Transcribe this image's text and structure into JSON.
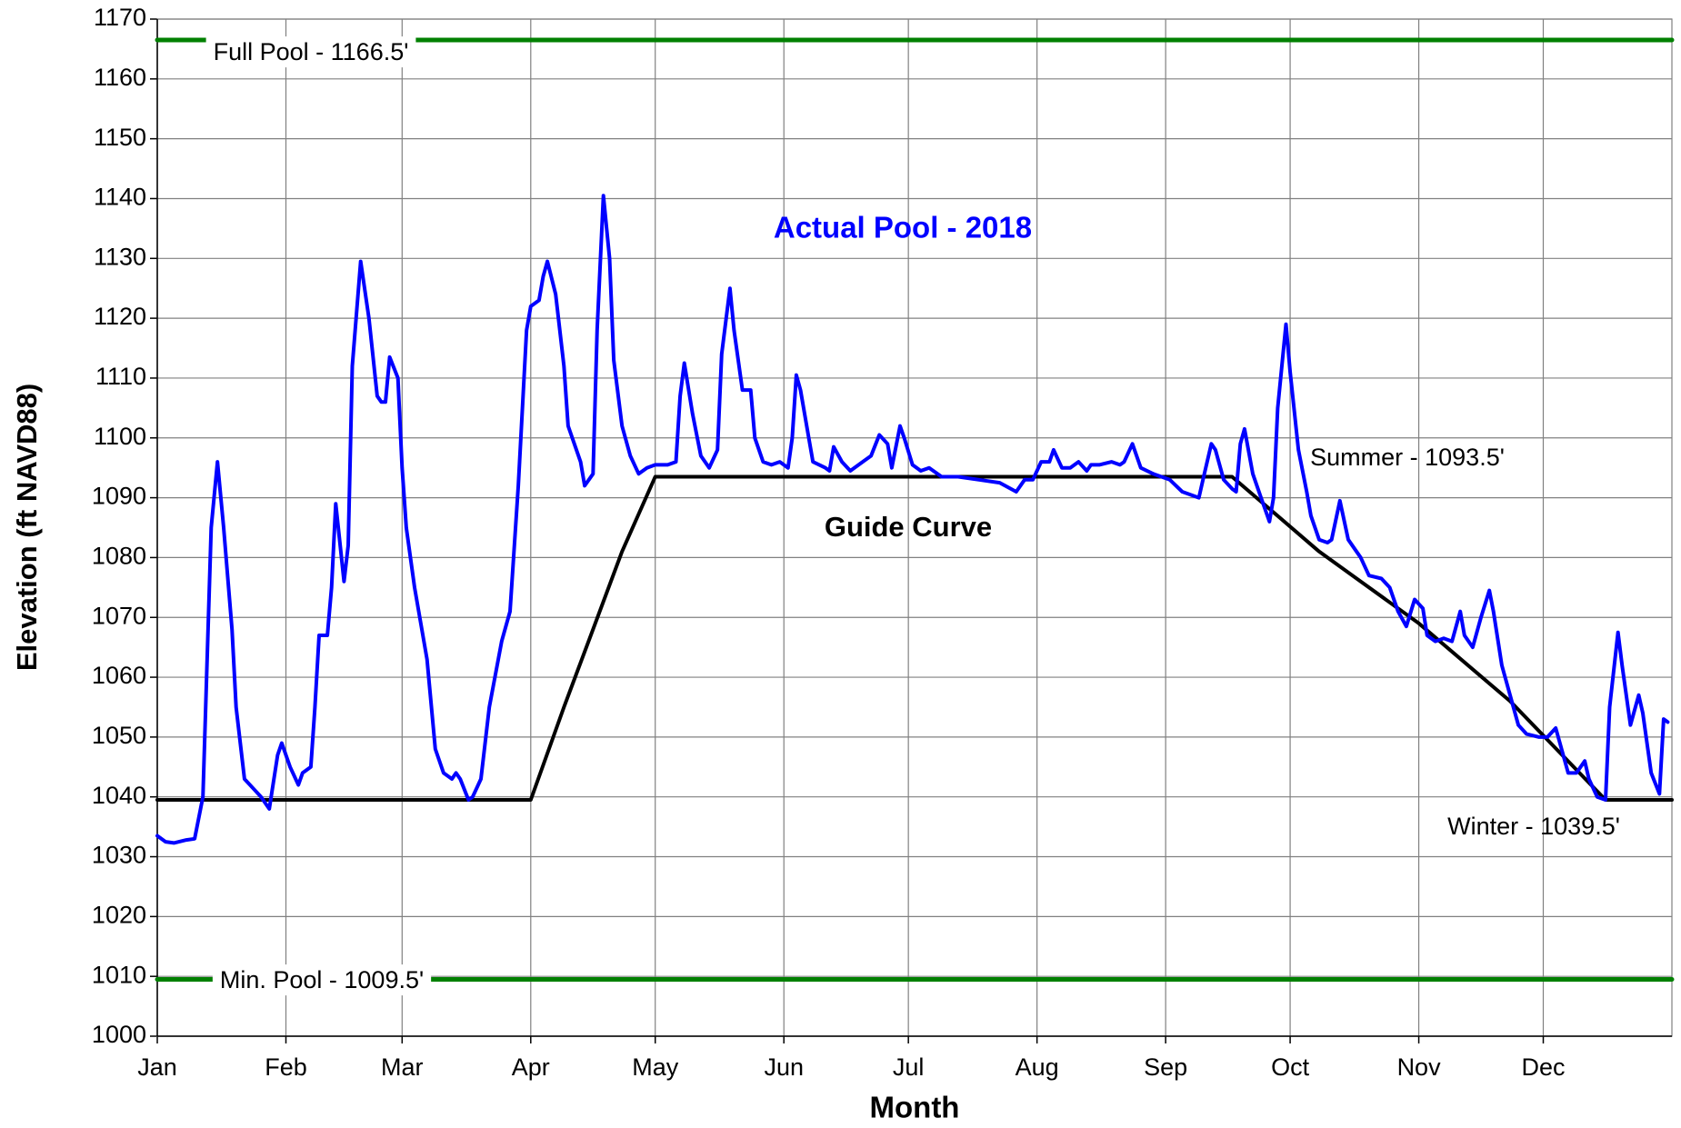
{
  "chart_data": {
    "type": "line",
    "x_label": "Month",
    "y_label": "Elevation (ft NAVD88)",
    "xlim": [
      0,
      365
    ],
    "ylim": [
      1000,
      1170
    ],
    "xticks": [
      {
        "value": 0,
        "label": "Jan"
      },
      {
        "value": 31,
        "label": "Feb"
      },
      {
        "value": 59,
        "label": "Mar"
      },
      {
        "value": 90,
        "label": "Apr"
      },
      {
        "value": 120,
        "label": "May"
      },
      {
        "value": 151,
        "label": "Jun"
      },
      {
        "value": 181,
        "label": "Jul"
      },
      {
        "value": 212,
        "label": "Aug"
      },
      {
        "value": 243,
        "label": "Sep"
      },
      {
        "value": 273,
        "label": "Oct"
      },
      {
        "value": 304,
        "label": "Nov"
      },
      {
        "value": 334,
        "label": "Dec"
      }
    ],
    "yticks": [
      1000,
      1010,
      1020,
      1030,
      1040,
      1050,
      1060,
      1070,
      1080,
      1090,
      1100,
      1110,
      1120,
      1130,
      1140,
      1150,
      1160,
      1170
    ],
    "grid": true,
    "series": [
      {
        "name": "Actual Pool - 2018",
        "color": "#0000ff",
        "x": [
          0,
          2,
          4,
          7,
          9,
          11,
          13,
          14.5,
          16,
          18,
          19,
          21,
          23,
          25,
          27,
          29,
          30,
          32,
          34,
          35,
          37,
          38,
          39,
          41,
          42,
          43,
          45,
          46,
          47,
          49,
          51,
          53,
          54,
          55,
          56,
          58,
          59,
          60,
          62,
          65,
          67,
          69,
          71,
          72,
          73,
          75,
          76,
          78,
          80,
          83,
          85,
          87,
          89,
          90,
          92,
          93,
          94,
          96,
          98,
          99,
          102,
          103,
          105,
          106,
          107.5,
          109,
          110,
          112,
          114,
          116,
          118,
          120,
          123,
          125,
          126,
          127,
          129,
          131,
          133,
          135,
          136,
          138,
          139,
          141,
          143,
          144,
          146,
          148,
          150,
          152,
          153,
          154,
          155,
          157,
          158,
          161,
          162,
          163,
          165,
          167,
          170,
          172,
          174,
          176,
          177,
          179,
          180,
          182,
          184,
          186,
          189,
          193,
          198,
          203,
          207,
          209,
          211,
          213,
          215,
          216,
          218,
          220,
          222,
          224,
          225,
          227,
          230,
          232,
          233,
          235,
          237,
          240,
          244,
          247,
          251,
          252,
          254,
          255,
          257,
          259,
          260,
          261,
          262,
          264,
          266,
          268,
          269,
          270,
          272,
          273,
          275,
          277,
          278,
          280,
          282,
          283,
          285,
          287,
          289,
          290,
          292,
          295,
          297,
          299,
          301,
          303,
          305,
          306,
          308,
          310,
          312,
          314,
          315,
          317,
          319,
          321,
          322,
          324,
          326,
          328,
          330,
          333,
          335,
          337,
          338,
          340,
          342,
          344,
          345,
          347,
          349,
          350,
          352,
          353,
          355,
          357,
          358,
          360,
          362,
          363,
          364
        ],
        "values": [
          1033.5,
          1032.5,
          1032.3,
          1032.8,
          1033,
          1040,
          1085,
          1096,
          1085,
          1068,
          1055,
          1043,
          1041.5,
          1040,
          1038,
          1047,
          1049,
          1045,
          1042,
          1044,
          1045,
          1055,
          1067,
          1067,
          1075,
          1089,
          1076,
          1082,
          1112,
          1129.5,
          1120,
          1107,
          1106,
          1106,
          1113.5,
          1110,
          1095,
          1085,
          1075,
          1063,
          1048,
          1044,
          1043,
          1044,
          1043,
          1039.5,
          1040,
          1043,
          1055,
          1066,
          1071,
          1092,
          1118,
          1122,
          1123,
          1127,
          1129.5,
          1124,
          1112,
          1102,
          1096,
          1092,
          1094,
          1118,
          1140.5,
          1130,
          1113,
          1102,
          1097,
          1094,
          1095,
          1095.5,
          1095.5,
          1096,
          1107,
          1112.5,
          1104,
          1097,
          1095,
          1098,
          1114,
          1125,
          1118,
          1108,
          1108,
          1100,
          1096,
          1095.5,
          1096,
          1095,
          1100,
          1110.5,
          1108,
          1100,
          1096,
          1095,
          1094.5,
          1098.5,
          1096,
          1094.5,
          1096,
          1097,
          1100.5,
          1099,
          1095,
          1102,
          1100,
          1095.5,
          1094.5,
          1095,
          1093.5,
          1093.5,
          1093,
          1092.5,
          1091,
          1093,
          1093,
          1096,
          1096,
          1098,
          1095,
          1095,
          1096,
          1094.5,
          1095.5,
          1095.5,
          1096,
          1095.5,
          1096,
          1099,
          1095,
          1094,
          1093,
          1091,
          1090,
          1093,
          1099,
          1098,
          1093,
          1091.5,
          1091,
          1099,
          1101.5,
          1094,
          1090,
          1086,
          1090,
          1105,
          1119,
          1111,
          1098,
          1091,
          1087,
          1083,
          1082.5,
          1083,
          1089.5,
          1083,
          1081,
          1080,
          1077,
          1076.5,
          1075,
          1071,
          1068.5,
          1073,
          1071.5,
          1067,
          1066,
          1066.5,
          1066,
          1071,
          1067,
          1065,
          1070,
          1074.5,
          1071,
          1062,
          1057,
          1052,
          1050.5,
          1050,
          1050,
          1051.5,
          1049,
          1044,
          1044,
          1046,
          1043,
          1040,
          1039.5,
          1055,
          1067.5,
          1062,
          1052,
          1057,
          1054,
          1044,
          1040.5,
          1053,
          1052.5
        ]
      },
      {
        "name": "Guide Curve",
        "color": "#000000",
        "x": [
          0,
          90,
          98,
          105,
          112,
          120,
          259,
          280,
          304,
          326,
          349,
          365
        ],
        "values": [
          1039.5,
          1039.5,
          1055,
          1068,
          1081,
          1093.5,
          1093.5,
          1081,
          1069,
          1056,
          1039.5,
          1039.5
        ]
      },
      {
        "name": "Full Pool - 1166.5'",
        "color": "#008000",
        "x": [
          0,
          365
        ],
        "values": [
          1166.5,
          1166.5
        ]
      },
      {
        "name": "Min. Pool - 1009.5'",
        "color": "#008000",
        "x": [
          0,
          365
        ],
        "values": [
          1009.5,
          1009.5
        ]
      }
    ],
    "annotations": [
      "Summer - 1093.5'",
      "Winter - 1039.5'"
    ]
  }
}
